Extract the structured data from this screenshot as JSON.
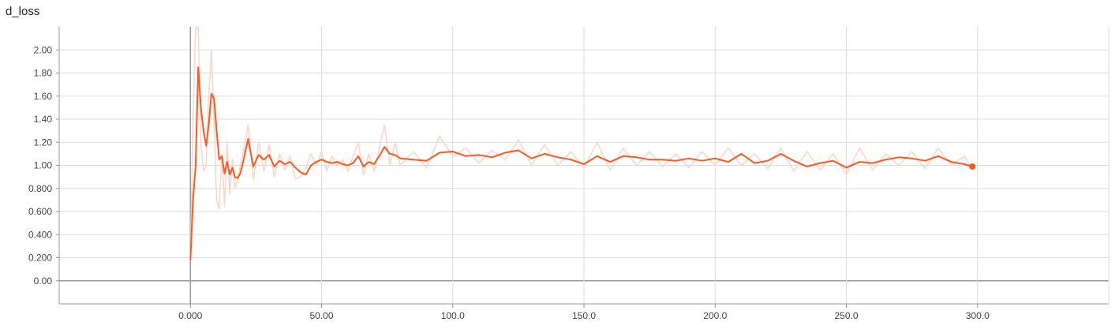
{
  "chart_data": {
    "type": "line",
    "title": "d_loss",
    "xlabel": "",
    "ylabel": "",
    "xlim": [
      -50,
      350
    ],
    "ylim": [
      -0.2,
      2.2
    ],
    "grid": true,
    "legend": "none",
    "x_ticks": [
      0,
      50,
      100,
      150,
      200,
      250,
      300
    ],
    "x_tick_labels": [
      "0.000",
      "50.00",
      "100.0",
      "150.0",
      "200.0",
      "250.0",
      "300.0"
    ],
    "y_ticks": [
      0,
      0.2,
      0.4,
      0.6,
      0.8,
      1.0,
      1.2,
      1.4,
      1.6,
      1.8,
      2.0
    ],
    "y_tick_labels": [
      "0.00",
      "0.200",
      "0.400",
      "0.600",
      "0.800",
      "1.00",
      "1.20",
      "1.40",
      "1.60",
      "1.80",
      "2.00"
    ],
    "colors": {
      "smoothed": "#ff5722",
      "raw": "#ffd3c6",
      "grid": "#dddddd",
      "axis": "#999999"
    },
    "series": [
      {
        "kind": "smoothed",
        "x": [
          0,
          1,
          2,
          3,
          4,
          5,
          6,
          7,
          8,
          9,
          10,
          11,
          12,
          13,
          14,
          15,
          16,
          17,
          18,
          19,
          20,
          22,
          24,
          26,
          28,
          30,
          32,
          34,
          36,
          38,
          40,
          42,
          44,
          46,
          48,
          50,
          52,
          54,
          56,
          58,
          60,
          62,
          64,
          66,
          68,
          70,
          72,
          74,
          76,
          78,
          80,
          85,
          90,
          95,
          100,
          105,
          110,
          115,
          120,
          125,
          130,
          135,
          140,
          145,
          150,
          155,
          160,
          165,
          170,
          175,
          180,
          185,
          190,
          195,
          200,
          205,
          210,
          215,
          220,
          225,
          230,
          235,
          240,
          245,
          250,
          255,
          260,
          265,
          270,
          275,
          280,
          285,
          290,
          295,
          298
        ],
        "y": [
          0.18,
          0.7,
          1.0,
          1.85,
          1.5,
          1.3,
          1.17,
          1.35,
          1.62,
          1.58,
          1.3,
          1.05,
          1.08,
          0.93,
          1.03,
          0.92,
          0.98,
          0.9,
          0.89,
          0.93,
          1.02,
          1.23,
          0.99,
          1.09,
          1.05,
          1.09,
          0.99,
          1.04,
          1.01,
          1.03,
          0.98,
          0.94,
          0.92,
          1.0,
          1.03,
          1.05,
          1.03,
          1.02,
          1.03,
          1.01,
          1.0,
          1.02,
          1.08,
          0.99,
          1.03,
          1.01,
          1.08,
          1.16,
          1.1,
          1.09,
          1.06,
          1.05,
          1.04,
          1.11,
          1.12,
          1.08,
          1.09,
          1.07,
          1.11,
          1.13,
          1.06,
          1.1,
          1.07,
          1.05,
          1.01,
          1.08,
          1.03,
          1.08,
          1.07,
          1.05,
          1.05,
          1.04,
          1.06,
          1.04,
          1.06,
          1.03,
          1.1,
          1.02,
          1.04,
          1.1,
          1.04,
          0.99,
          1.02,
          1.04,
          0.98,
          1.03,
          1.02,
          1.05,
          1.07,
          1.06,
          1.04,
          1.08,
          1.03,
          1.01,
          0.99
        ]
      },
      {
        "kind": "raw",
        "x": [
          0,
          1,
          2,
          3,
          4,
          5,
          6,
          7,
          8,
          9,
          10,
          11,
          12,
          13,
          14,
          15,
          16,
          17,
          18,
          19,
          20,
          22,
          24,
          26,
          28,
          30,
          32,
          34,
          36,
          38,
          40,
          42,
          44,
          46,
          48,
          50,
          52,
          54,
          56,
          58,
          60,
          62,
          64,
          66,
          68,
          70,
          72,
          74,
          76,
          78,
          80,
          85,
          90,
          95,
          100,
          105,
          110,
          115,
          120,
          125,
          130,
          135,
          140,
          145,
          150,
          155,
          160,
          165,
          170,
          175,
          180,
          185,
          190,
          195,
          200,
          205,
          210,
          215,
          220,
          225,
          230,
          235,
          240,
          245,
          250,
          255,
          260,
          265,
          270,
          275,
          280,
          285,
          290,
          295,
          298
        ],
        "y": [
          0.18,
          1.4,
          2.2,
          2.2,
          1.2,
          0.95,
          1.0,
          1.6,
          2.0,
          1.4,
          0.7,
          0.62,
          1.1,
          0.65,
          1.2,
          0.75,
          1.05,
          0.8,
          0.88,
          1.0,
          1.1,
          1.35,
          0.88,
          1.2,
          0.95,
          1.18,
          0.9,
          1.1,
          0.96,
          1.08,
          0.88,
          0.9,
          0.98,
          1.1,
          1.0,
          1.12,
          0.95,
          1.08,
          1.0,
          1.05,
          0.95,
          1.08,
          1.2,
          0.92,
          1.1,
          0.95,
          1.15,
          1.35,
          1.0,
          1.2,
          1.0,
          1.12,
          0.98,
          1.25,
          1.08,
          1.15,
          1.02,
          1.13,
          1.05,
          1.22,
          1.0,
          1.18,
          1.0,
          1.12,
          0.98,
          1.2,
          0.96,
          1.15,
          1.0,
          1.12,
          0.99,
          1.1,
          0.98,
          1.12,
          1.0,
          1.15,
          1.0,
          1.1,
          0.97,
          1.15,
          0.95,
          1.12,
          0.96,
          1.1,
          0.92,
          1.15,
          0.96,
          1.1,
          1.0,
          1.12,
          0.97,
          1.15,
          1.0,
          1.08,
          0.96
        ]
      }
    ]
  }
}
